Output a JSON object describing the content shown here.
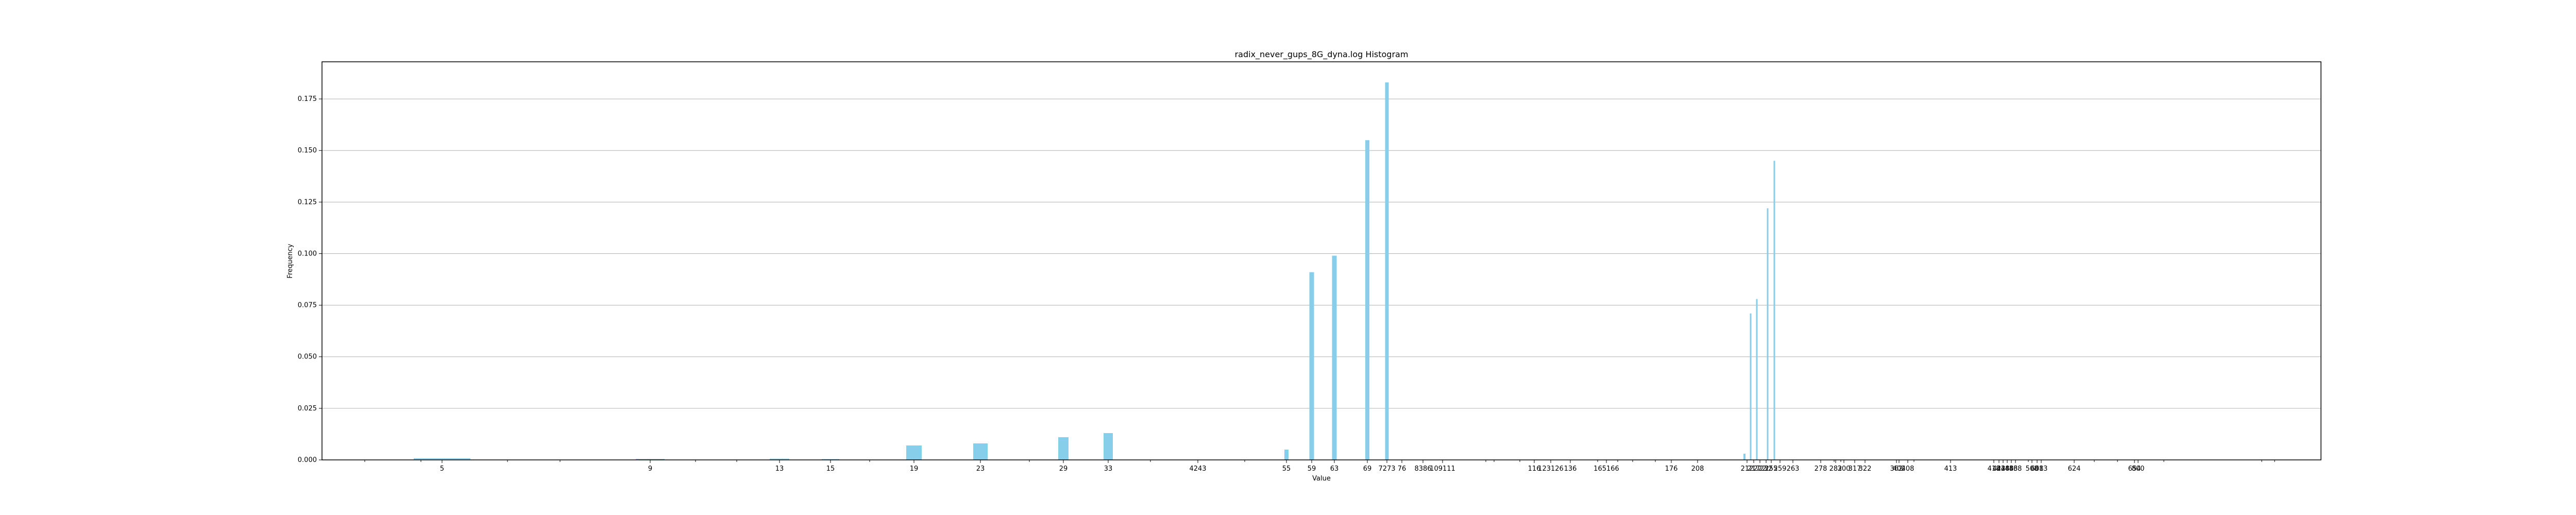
{
  "chart_data": {
    "type": "bar",
    "title": "radix_never_gups_8G_dyna.log Histogram",
    "xlabel": "Value",
    "ylabel": "Frequency",
    "ylim": [
      0,
      0.193
    ],
    "grid": "y",
    "bar_color": "#87ceeb",
    "y_ticks": [
      0.0,
      0.025,
      0.05,
      0.075,
      0.1,
      0.125,
      0.15,
      0.175
    ],
    "y_tick_labels": [
      "0.000",
      "0.025",
      "0.050",
      "0.075",
      "0.100",
      "0.125",
      "0.150",
      "0.175"
    ],
    "x_tick_labels": [
      "5",
      "9",
      "13",
      "15",
      "19",
      "23",
      "29",
      "33",
      "4243",
      "55",
      "59",
      "63",
      "69",
      "7273",
      "76",
      "8386",
      "109111",
      "116",
      "123126",
      "136",
      "165166",
      "176",
      "208",
      "212",
      "217",
      "222",
      "232",
      "255",
      "259",
      "263",
      "278",
      "282",
      "300",
      "317",
      "322",
      "362",
      "402",
      "408",
      "413",
      "418",
      "423",
      "428",
      "448",
      "453",
      "468",
      "508",
      "608",
      "613",
      "624",
      "654",
      "800"
    ],
    "values": [
      0.0008,
      0.0005,
      0.0006,
      0.0004,
      0.007,
      0.008,
      0.011,
      0.013,
      0.005,
      0.091,
      0.099,
      0.155,
      0.183,
      0.003,
      0.071,
      0.078,
      0.122,
      0.145
    ]
  }
}
